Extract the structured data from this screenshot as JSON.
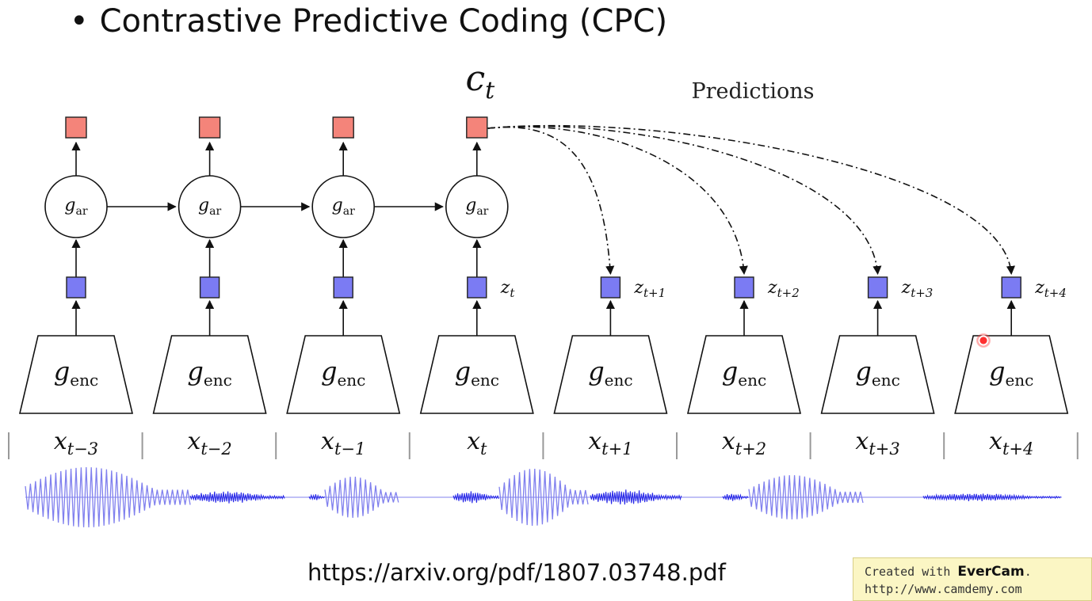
{
  "title": {
    "bullet": "•",
    "text": "Contrastive Predictive Coding (CPC)"
  },
  "context_label": {
    "base": "c",
    "sub": "t"
  },
  "predictions_label": "Predictions",
  "ar_label": {
    "base": "g",
    "sub": "ar"
  },
  "enc_label": {
    "base": "g",
    "sub": "enc"
  },
  "steps": [
    {
      "x": {
        "base": "x",
        "sub": "t−3"
      },
      "has_context": true,
      "z": null,
      "predicted": false
    },
    {
      "x": {
        "base": "x",
        "sub": "t−2"
      },
      "has_context": true,
      "z": null,
      "predicted": false
    },
    {
      "x": {
        "base": "x",
        "sub": "t−1"
      },
      "has_context": true,
      "z": null,
      "predicted": false
    },
    {
      "x": {
        "base": "x",
        "sub": "t"
      },
      "has_context": true,
      "z": {
        "base": "z",
        "sub": "t"
      },
      "predicted": false
    },
    {
      "x": {
        "base": "x",
        "sub": "t+1"
      },
      "has_context": false,
      "z": {
        "base": "z",
        "sub": "t+1"
      },
      "predicted": true
    },
    {
      "x": {
        "base": "x",
        "sub": "t+2"
      },
      "has_context": false,
      "z": {
        "base": "z",
        "sub": "t+2"
      },
      "predicted": true
    },
    {
      "x": {
        "base": "x",
        "sub": "t+3"
      },
      "has_context": false,
      "z": {
        "base": "z",
        "sub": "t+3"
      },
      "predicted": true
    },
    {
      "x": {
        "base": "x",
        "sub": "t+4"
      },
      "has_context": false,
      "z": {
        "base": "z",
        "sub": "t+4"
      },
      "predicted": true
    }
  ],
  "url": "https://arxiv.org/pdf/1807.03748.pdf",
  "watermark": {
    "line1_prefix": "Created with ",
    "line1_brand": "EverCam",
    "line1_suffix": ".",
    "line2": "http://www.camdemy.com"
  },
  "colors": {
    "context": "#f4847a",
    "latent": "#7b7bf3",
    "waveform": "#2a2ae8",
    "waveform_light": "#8080ee",
    "line": "#111111",
    "separator": "#999999"
  }
}
